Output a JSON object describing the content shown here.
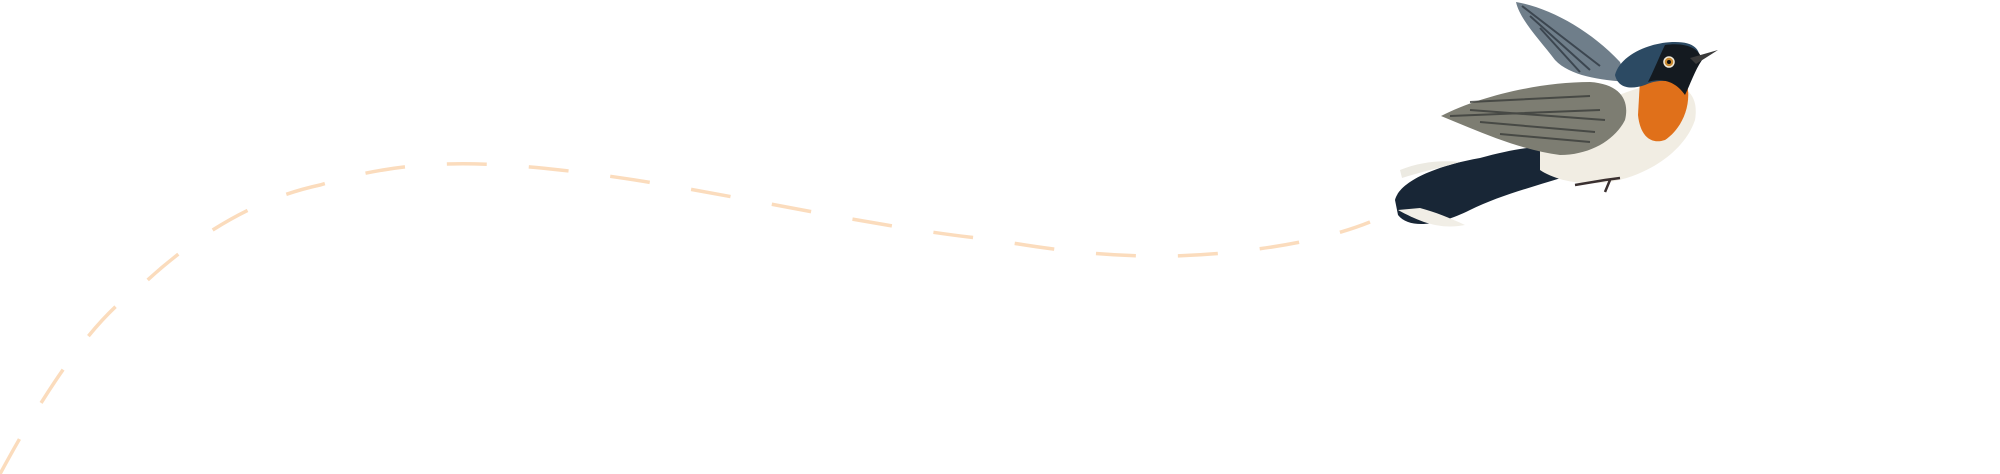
{
  "illustration": {
    "path_style": "dashed",
    "colors": {
      "path": "#fbdcbd",
      "bird_blue": "#2c4a63",
      "bird_throat": "#e0701a",
      "bird_belly": "#f1ede3",
      "bird_wing": "#7d7d72",
      "bird_black": "#141a20"
    },
    "icons": [
      "flight-path",
      "bird-illustration"
    ]
  }
}
